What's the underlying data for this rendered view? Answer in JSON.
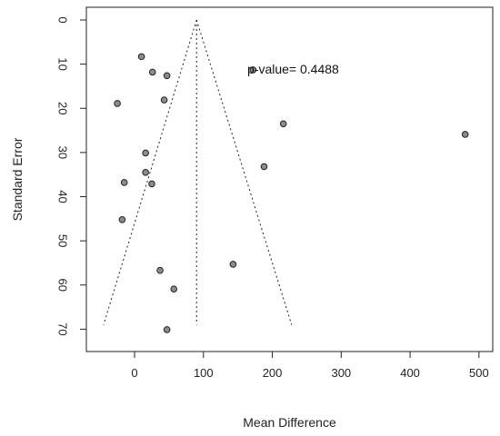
{
  "chart_data": {
    "type": "scatter",
    "title": "",
    "xlabel": "Mean Difference",
    "ylabel": "Standard Error",
    "x_ticks": [
      0,
      100,
      200,
      300,
      400,
      500
    ],
    "y_ticks": [
      0,
      10,
      20,
      30,
      40,
      50,
      60,
      70
    ],
    "xlim": [
      -70,
      520
    ],
    "ylim": [
      0,
      73
    ],
    "y_reversed": true,
    "grid": false,
    "annotation": "p-value= 0.4488",
    "pooled_estimate": 90,
    "funnel": {
      "apex": [
        90,
        0
      ],
      "left_base": [
        -45,
        69
      ],
      "right_base": [
        228,
        69
      ],
      "style": "dotted"
    },
    "vertical_line": {
      "x": 90,
      "y_from": 0,
      "y_to": 69,
      "style": "dotted"
    },
    "points": [
      {
        "x": 10,
        "y": 8.3
      },
      {
        "x": 26,
        "y": 11.8
      },
      {
        "x": 47,
        "y": 12.6
      },
      {
        "x": 43,
        "y": 18.1
      },
      {
        "x": -25,
        "y": 18.9
      },
      {
        "x": 172,
        "y": 11.3
      },
      {
        "x": 216,
        "y": 23.5
      },
      {
        "x": 480,
        "y": 25.9
      },
      {
        "x": 16,
        "y": 30.1
      },
      {
        "x": 188,
        "y": 33.2
      },
      {
        "x": 16,
        "y": 34.5
      },
      {
        "x": -15,
        "y": 36.8
      },
      {
        "x": 25,
        "y": 37.1
      },
      {
        "x": -18,
        "y": 45.2
      },
      {
        "x": 37,
        "y": 56.7
      },
      {
        "x": 143,
        "y": 55.3
      },
      {
        "x": 57,
        "y": 60.9
      },
      {
        "x": 47,
        "y": 70.1
      }
    ],
    "marker_color": "#8c8c8c",
    "marker_edge_color": "#222222",
    "line_color": "#222222"
  }
}
